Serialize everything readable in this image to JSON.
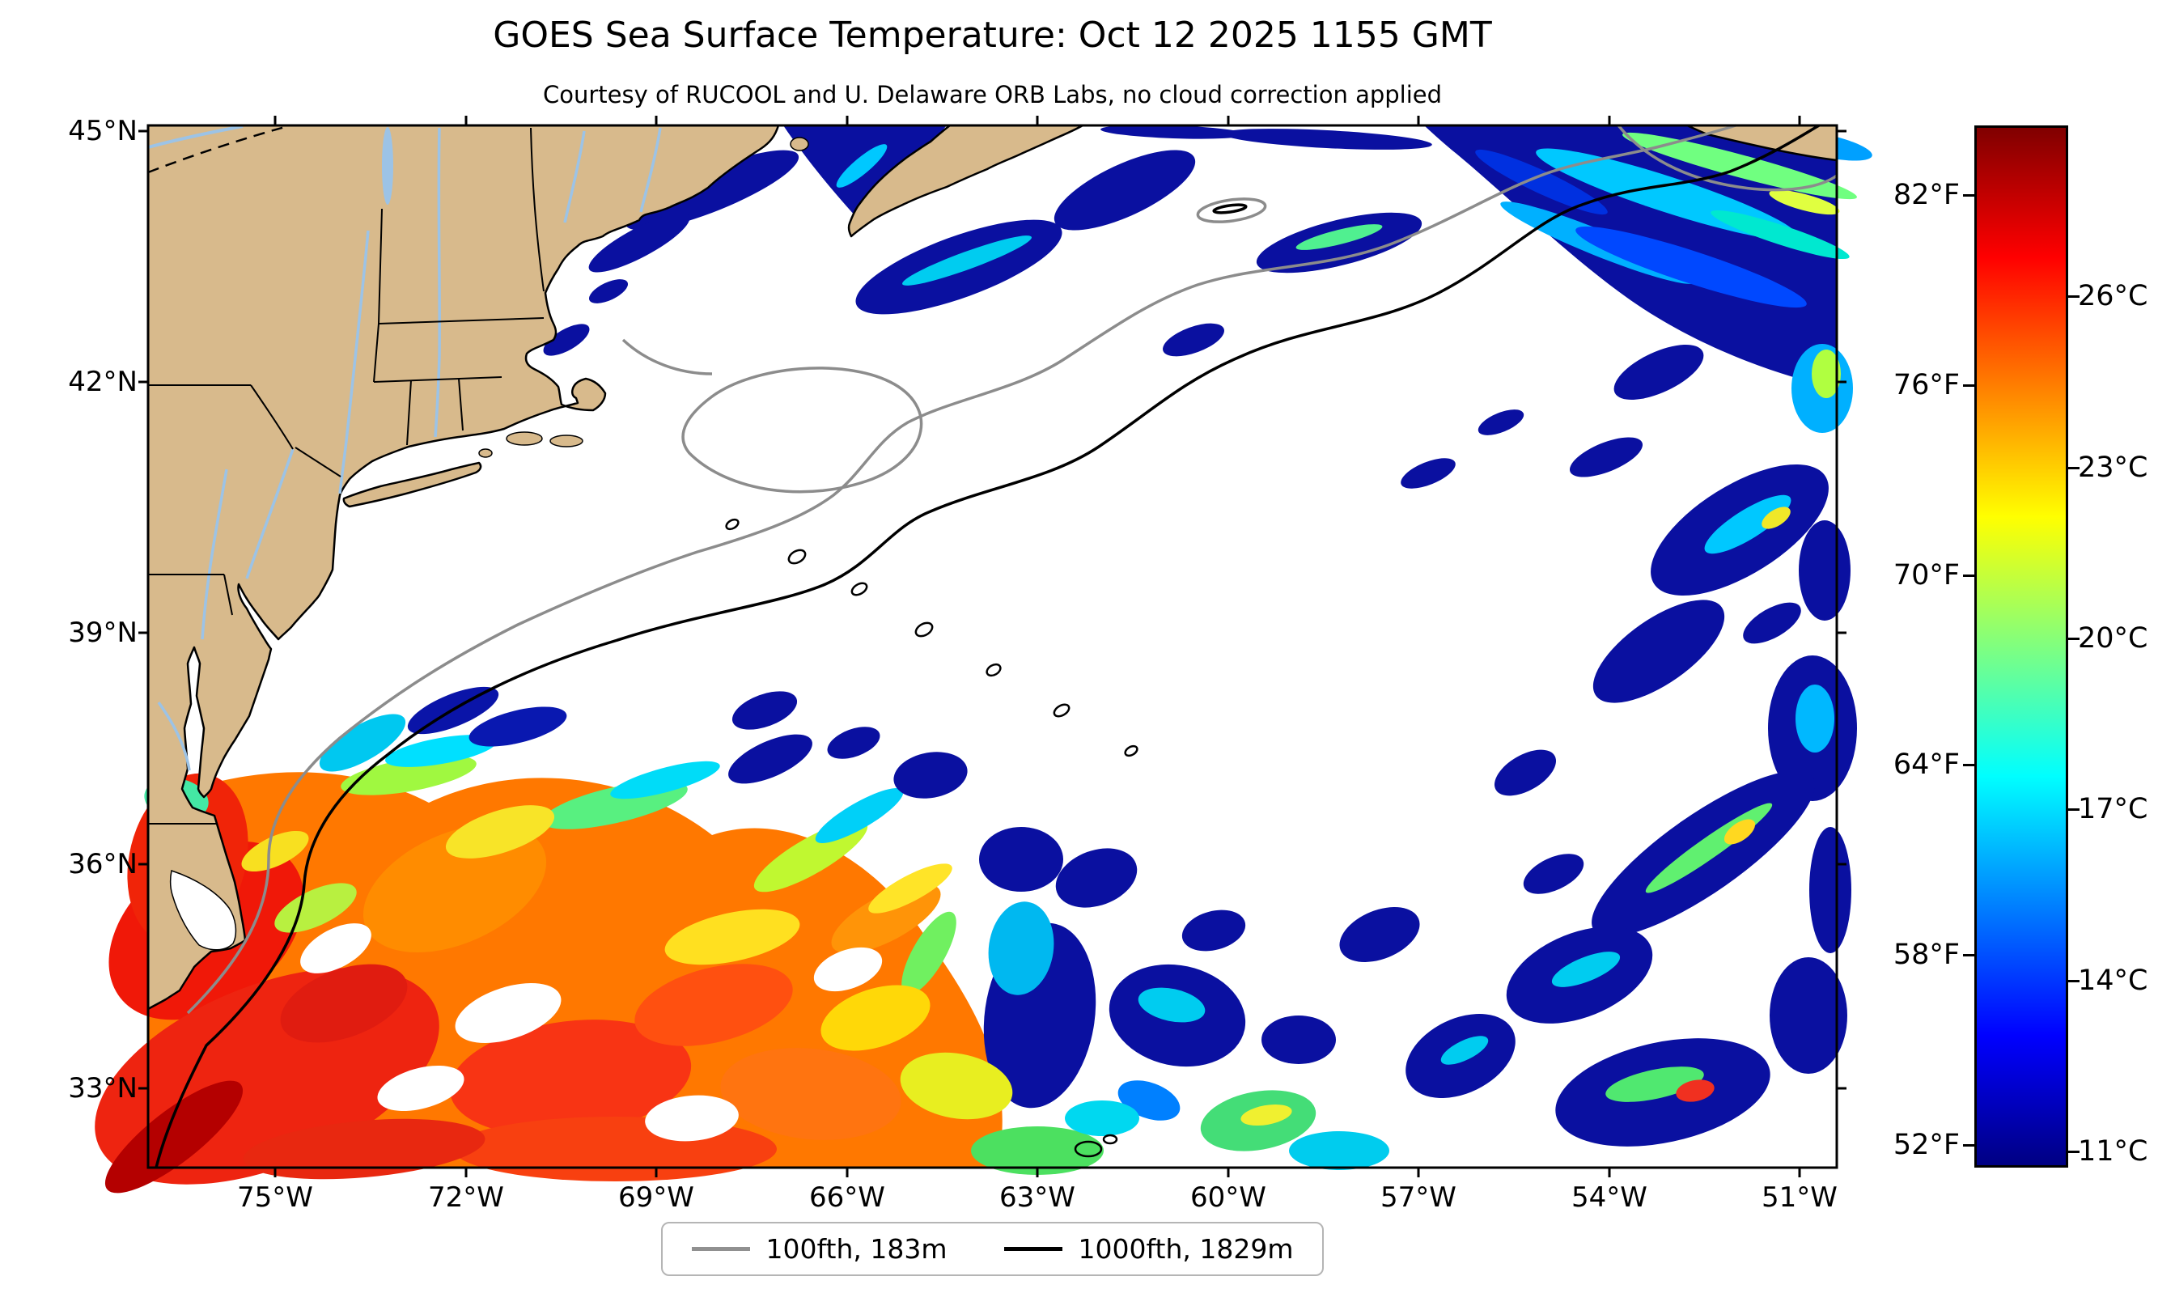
{
  "title": "GOES Sea Surface Temperature: Oct 12 2025 1155 GMT",
  "subtitle": "Courtesy of RUCOOL and U. Delaware ORB Labs, no cloud correction applied",
  "axes": {
    "lat_ticks": [
      "45°N",
      "42°N",
      "39°N",
      "36°N",
      "33°N"
    ],
    "lon_ticks": [
      "75°W",
      "72°W",
      "69°W",
      "66°W",
      "63°W",
      "60°W",
      "57°W",
      "54°W",
      "51°W"
    ]
  },
  "colorbar": {
    "fahrenheit_ticks": [
      "82°F",
      "76°F",
      "70°F",
      "64°F",
      "58°F",
      "52°F"
    ],
    "celsius_ticks": [
      "26°C",
      "23°C",
      "20°C",
      "17°C",
      "14°C",
      "11°C"
    ],
    "colormap": "jet",
    "colormap_stops": [
      "#000083",
      "#0000ff",
      "#00ffff",
      "#ffff00",
      "#ff0000",
      "#800000"
    ]
  },
  "legend": {
    "items": [
      {
        "label": "100fth, 183m",
        "color": "#909090"
      },
      {
        "label": "1000fth, 1829m",
        "color": "#000000"
      }
    ]
  },
  "map": {
    "land_color": "#d8ba8c",
    "no_data_color": "#ffffff"
  },
  "chart_data": {
    "type": "heatmap",
    "title": "GOES Sea Surface Temperature: Oct 12 2025 1155 GMT",
    "subtitle": "Courtesy of RUCOOL and U. Delaware ORB Labs, no cloud correction applied",
    "x_tick_labels": [
      "75°W",
      "72°W",
      "69°W",
      "66°W",
      "63°W",
      "60°W",
      "57°W",
      "54°W",
      "51°W"
    ],
    "y_tick_labels": [
      "45°N",
      "42°N",
      "39°N",
      "36°N",
      "33°N"
    ],
    "colorbar": {
      "fahrenheit": [
        82,
        76,
        70,
        64,
        58,
        52
      ],
      "celsius": [
        26,
        23,
        20,
        17,
        14,
        11
      ],
      "colormap": "jet"
    },
    "contours": [
      {
        "label": "100fth, 183m",
        "color": "#909090"
      },
      {
        "label": "1000fth, 1829m",
        "color": "#000000"
      }
    ]
  }
}
